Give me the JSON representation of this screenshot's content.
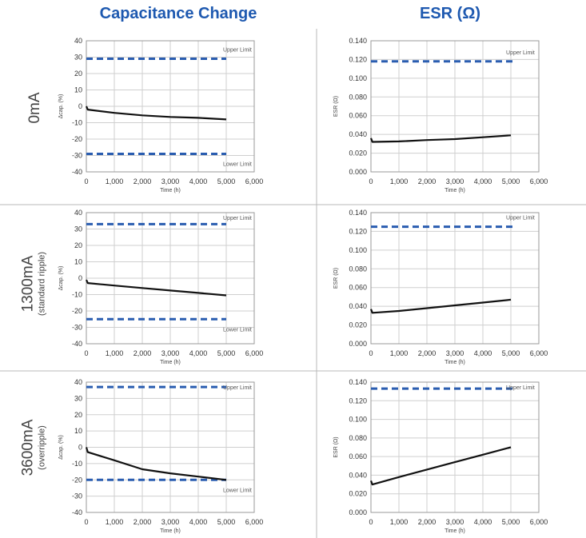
{
  "headers": {
    "left": "Capacitance Change",
    "right": "ESR (Ω)"
  },
  "rows": [
    {
      "label": "0mA",
      "sublabel": ""
    },
    {
      "label": "1300mA",
      "sublabel": "(standard ripple)"
    },
    {
      "label": "3600mA",
      "sublabel": "(overripple)"
    }
  ],
  "colors": {
    "header": "#1e59b0",
    "limit_line": "#2a5db0",
    "data_line": "#111111",
    "grid": "#cfcfcf"
  },
  "chart_data": [
    {
      "type": "line",
      "row": 0,
      "col": 0,
      "xlabel": "Time (h)",
      "ylabel": "Δcap. (%)",
      "xlim": [
        0,
        6000
      ],
      "ylim": [
        -40,
        40
      ],
      "xticks": [
        "0",
        "1,000",
        "2,000",
        "3,000",
        "4,000",
        "5,000",
        "6,000"
      ],
      "yticks": [
        "40",
        "30",
        "20",
        "10",
        "0",
        "-10",
        "-20",
        "-30",
        "-40"
      ],
      "series": [
        {
          "x": [
            0,
            50,
            1000,
            2000,
            3000,
            4000,
            5000
          ],
          "y": [
            0,
            -2,
            -4,
            -5.5,
            -6.5,
            -7,
            -8
          ]
        }
      ],
      "limits": [
        {
          "name": "Upper Limit",
          "value": 29,
          "x_end": 5000
        },
        {
          "name": "Lower Limit",
          "value": -29,
          "x_end": 5000
        }
      ]
    },
    {
      "type": "line",
      "row": 0,
      "col": 1,
      "xlabel": "Time (h)",
      "ylabel": "ESR (Ω)",
      "xlim": [
        0,
        6000
      ],
      "ylim": [
        0,
        0.14
      ],
      "xticks": [
        "0",
        "1,000",
        "2,000",
        "3,000",
        "4,000",
        "5,000",
        "6,000"
      ],
      "yticks": [
        "0.140",
        "0.120",
        "0.100",
        "0.080",
        "0.060",
        "0.040",
        "0.020",
        "0.000"
      ],
      "series": [
        {
          "x": [
            0,
            50,
            1000,
            2000,
            3000,
            4000,
            5000
          ],
          "y": [
            0.036,
            0.032,
            0.0325,
            0.034,
            0.035,
            0.037,
            0.039
          ]
        }
      ],
      "limits": [
        {
          "name": "Upper Limit",
          "value": 0.118,
          "x_end": 5200
        }
      ]
    },
    {
      "type": "line",
      "row": 1,
      "col": 0,
      "xlabel": "Time (h)",
      "ylabel": "Δcap. (%)",
      "xlim": [
        0,
        6000
      ],
      "ylim": [
        -40,
        40
      ],
      "xticks": [
        "0",
        "1,000",
        "2,000",
        "3,000",
        "4,000",
        "5,000",
        "6,000"
      ],
      "yticks": [
        "40",
        "30",
        "20",
        "10",
        "0",
        "-10",
        "-20",
        "-30",
        "-40"
      ],
      "series": [
        {
          "x": [
            0,
            50,
            1000,
            2000,
            3000,
            4000,
            5000
          ],
          "y": [
            -1,
            -3,
            -4.5,
            -6,
            -7.5,
            -9,
            -10.5
          ]
        }
      ],
      "limits": [
        {
          "name": "Upper Limit",
          "value": 33,
          "x_end": 5000
        },
        {
          "name": "Lower Limit",
          "value": -25,
          "x_end": 5000
        }
      ]
    },
    {
      "type": "line",
      "row": 1,
      "col": 1,
      "xlabel": "Time (h)",
      "ylabel": "ESR (Ω)",
      "xlim": [
        0,
        6000
      ],
      "ylim": [
        0,
        0.14
      ],
      "xticks": [
        "0",
        "1,000",
        "2,000",
        "3,000",
        "4,000",
        "5,000",
        "6,000"
      ],
      "yticks": [
        "0.140",
        "0.120",
        "0.100",
        "0.080",
        "0.060",
        "0.040",
        "0.020",
        "0.000"
      ],
      "series": [
        {
          "x": [
            0,
            50,
            1000,
            2000,
            3000,
            4000,
            5000
          ],
          "y": [
            0.037,
            0.033,
            0.035,
            0.038,
            0.041,
            0.044,
            0.047
          ]
        }
      ],
      "limits": [
        {
          "name": "Upper Limit",
          "value": 0.125,
          "x_end": 5200
        }
      ]
    },
    {
      "type": "line",
      "row": 2,
      "col": 0,
      "xlabel": "Time (h)",
      "ylabel": "Δcap. (%)",
      "xlim": [
        0,
        6000
      ],
      "ylim": [
        -40,
        40
      ],
      "xticks": [
        "0",
        "1,000",
        "2,000",
        "3,000",
        "4,000",
        "5,000",
        "6,000"
      ],
      "yticks": [
        "40",
        "30",
        "20",
        "10",
        "0",
        "-10",
        "-20",
        "-30",
        "-40"
      ],
      "series": [
        {
          "x": [
            0,
            50,
            1000,
            2000,
            3000,
            4000,
            5000
          ],
          "y": [
            0,
            -3,
            -8,
            -13.5,
            -16,
            -18,
            -20
          ]
        }
      ],
      "limits": [
        {
          "name": "Upper Limit",
          "value": 37,
          "x_end": 5000
        },
        {
          "name": "Lower Limit",
          "value": -20,
          "x_end": 5000
        }
      ]
    },
    {
      "type": "line",
      "row": 2,
      "col": 1,
      "xlabel": "Time (h)",
      "ylabel": "ESR (Ω)",
      "xlim": [
        0,
        6000
      ],
      "ylim": [
        0,
        0.14
      ],
      "xticks": [
        "0",
        "1,000",
        "2,000",
        "3,000",
        "4,000",
        "5,000",
        "6,000"
      ],
      "yticks": [
        "0.140",
        "0.120",
        "0.100",
        "0.080",
        "0.060",
        "0.040",
        "0.020",
        "0.000"
      ],
      "series": [
        {
          "x": [
            0,
            50,
            1000,
            2000,
            3000,
            4000,
            5000
          ],
          "y": [
            0.034,
            0.03,
            0.038,
            0.046,
            0.054,
            0.062,
            0.07
          ]
        }
      ],
      "limits": [
        {
          "name": "Upper Limit",
          "value": 0.133,
          "x_end": 5200
        }
      ]
    }
  ]
}
